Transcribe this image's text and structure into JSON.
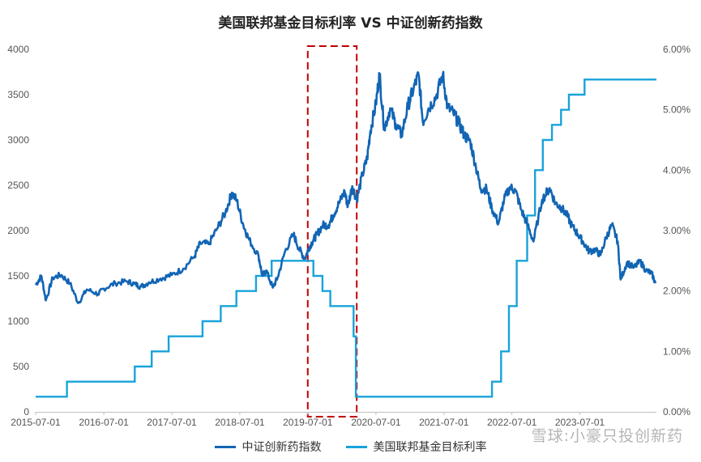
{
  "colors": {
    "index_line": "#1265b4",
    "rate_line": "#18a3d9",
    "highlight_box": "#c00000",
    "grid": "#ffffff"
  },
  "watermark": "雪球:小豪只投创新药",
  "chart_data": {
    "type": "line",
    "title": "美国联邦基金目标利率 VS 中证创新药指数",
    "x_ticks": [
      "2015-07-01",
      "2016-07-01",
      "2017-07-01",
      "2018-07-01",
      "2019-07-01",
      "2020-07-01",
      "2021-07-01",
      "2022-07-01",
      "2023-07-01"
    ],
    "x_range": [
      "2015-07-01",
      "2024-08-15"
    ],
    "y_left": {
      "range": [
        0,
        4000
      ],
      "ticks": [
        "0",
        "500",
        "1000",
        "1500",
        "2000",
        "2500",
        "3000",
        "3500",
        "4000"
      ]
    },
    "y_right": {
      "range": [
        0,
        6
      ],
      "ticks": [
        "0.00%",
        "1.00%",
        "2.00%",
        "3.00%",
        "4.00%",
        "5.00%",
        "6.00%"
      ]
    },
    "highlight": {
      "x_start": "2019-07-01",
      "x_end": "2020-03-20"
    },
    "legend": "bottom-center",
    "series": [
      {
        "name": "中证创新药指数",
        "axis": "left",
        "points": [
          [
            "2015-07-01",
            1400
          ],
          [
            "2015-08-01",
            1500
          ],
          [
            "2015-08-25",
            1230
          ],
          [
            "2015-10-01",
            1480
          ],
          [
            "2015-11-15",
            1510
          ],
          [
            "2016-01-01",
            1420
          ],
          [
            "2016-02-15",
            1200
          ],
          [
            "2016-04-01",
            1350
          ],
          [
            "2016-06-01",
            1300
          ],
          [
            "2016-07-01",
            1360
          ],
          [
            "2016-09-01",
            1420
          ],
          [
            "2016-11-01",
            1440
          ],
          [
            "2016-12-15",
            1410
          ],
          [
            "2017-01-15",
            1380
          ],
          [
            "2017-03-01",
            1430
          ],
          [
            "2017-05-01",
            1470
          ],
          [
            "2017-07-01",
            1510
          ],
          [
            "2017-09-01",
            1580
          ],
          [
            "2017-11-01",
            1720
          ],
          [
            "2017-12-01",
            1860
          ],
          [
            "2018-01-15",
            1850
          ],
          [
            "2018-03-01",
            2020
          ],
          [
            "2018-04-15",
            2200
          ],
          [
            "2018-05-20",
            2420
          ],
          [
            "2018-06-15",
            2330
          ],
          [
            "2018-07-20",
            2060
          ],
          [
            "2018-08-20",
            1900
          ],
          [
            "2018-10-10",
            1720
          ],
          [
            "2018-10-30",
            1500
          ],
          [
            "2018-11-20",
            1560
          ],
          [
            "2018-12-25",
            1370
          ],
          [
            "2019-01-20",
            1480
          ],
          [
            "2019-03-01",
            1770
          ],
          [
            "2019-04-15",
            1960
          ],
          [
            "2019-05-15",
            1800
          ],
          [
            "2019-06-15",
            1690
          ],
          [
            "2019-07-10",
            1820
          ],
          [
            "2019-08-01",
            1900
          ],
          [
            "2019-08-20",
            1960
          ],
          [
            "2019-09-20",
            2060
          ],
          [
            "2019-10-20",
            2060
          ],
          [
            "2019-11-15",
            2170
          ],
          [
            "2019-12-15",
            2300
          ],
          [
            "2020-01-15",
            2430
          ],
          [
            "2020-02-01",
            2270
          ],
          [
            "2020-02-25",
            2490
          ],
          [
            "2020-03-20",
            2340
          ],
          [
            "2020-04-20",
            2620
          ],
          [
            "2020-05-15",
            2800
          ],
          [
            "2020-06-01",
            3100
          ],
          [
            "2020-07-01",
            3400
          ],
          [
            "2020-07-20",
            3730
          ],
          [
            "2020-08-15",
            3120
          ],
          [
            "2020-09-15",
            3350
          ],
          [
            "2020-10-15",
            3180
          ],
          [
            "2020-11-15",
            3050
          ],
          [
            "2020-12-20",
            3380
          ],
          [
            "2021-01-20",
            3570
          ],
          [
            "2021-02-15",
            3720
          ],
          [
            "2021-03-10",
            3200
          ],
          [
            "2021-04-10",
            3350
          ],
          [
            "2021-05-20",
            3480
          ],
          [
            "2021-06-25",
            3720
          ],
          [
            "2021-07-20",
            3360
          ],
          [
            "2021-08-20",
            3300
          ],
          [
            "2021-09-20",
            3180
          ],
          [
            "2021-10-20",
            3050
          ],
          [
            "2021-11-20",
            2980
          ],
          [
            "2021-12-20",
            2700
          ],
          [
            "2022-01-15",
            2460
          ],
          [
            "2022-02-15",
            2460
          ],
          [
            "2022-03-15",
            2250
          ],
          [
            "2022-04-20",
            2080
          ],
          [
            "2022-05-20",
            2340
          ],
          [
            "2022-06-20",
            2480
          ],
          [
            "2022-07-20",
            2440
          ],
          [
            "2022-08-20",
            2230
          ],
          [
            "2022-09-20",
            2080
          ],
          [
            "2022-10-25",
            1880
          ],
          [
            "2022-12-10",
            2340
          ],
          [
            "2023-01-20",
            2470
          ],
          [
            "2023-02-20",
            2300
          ],
          [
            "2023-03-20",
            2260
          ],
          [
            "2023-04-20",
            2180
          ],
          [
            "2023-05-20",
            2050
          ],
          [
            "2023-06-20",
            1960
          ],
          [
            "2023-07-20",
            1870
          ],
          [
            "2023-08-20",
            1770
          ],
          [
            "2023-09-20",
            1790
          ],
          [
            "2023-10-20",
            1730
          ],
          [
            "2023-11-20",
            1930
          ],
          [
            "2023-12-20",
            2060
          ],
          [
            "2024-01-20",
            1880
          ],
          [
            "2024-02-05",
            1460
          ],
          [
            "2024-03-10",
            1650
          ],
          [
            "2024-04-15",
            1590
          ],
          [
            "2024-05-20",
            1660
          ],
          [
            "2024-06-20",
            1560
          ],
          [
            "2024-07-20",
            1530
          ],
          [
            "2024-08-10",
            1420
          ]
        ]
      },
      {
        "name": "美国联邦基金目标利率",
        "axis": "right",
        "steps": [
          [
            "2015-07-01",
            0.25
          ],
          [
            "2015-12-16",
            0.5
          ],
          [
            "2016-12-14",
            0.75
          ],
          [
            "2017-03-15",
            1.0
          ],
          [
            "2017-06-14",
            1.25
          ],
          [
            "2017-12-13",
            1.5
          ],
          [
            "2018-03-21",
            1.75
          ],
          [
            "2018-06-13",
            2.0
          ],
          [
            "2018-09-26",
            2.25
          ],
          [
            "2018-12-19",
            2.5
          ],
          [
            "2019-07-31",
            2.25
          ],
          [
            "2019-09-18",
            2.0
          ],
          [
            "2019-10-30",
            1.75
          ],
          [
            "2020-03-03",
            1.25
          ],
          [
            "2020-03-15",
            0.25
          ],
          [
            "2022-03-16",
            0.5
          ],
          [
            "2022-05-04",
            1.0
          ],
          [
            "2022-06-15",
            1.75
          ],
          [
            "2022-07-27",
            2.5
          ],
          [
            "2022-09-21",
            3.25
          ],
          [
            "2022-11-02",
            4.0
          ],
          [
            "2022-12-14",
            4.5
          ],
          [
            "2023-02-01",
            4.75
          ],
          [
            "2023-03-22",
            5.0
          ],
          [
            "2023-05-03",
            5.25
          ],
          [
            "2023-07-26",
            5.5
          ],
          [
            "2024-08-15",
            5.5
          ]
        ]
      }
    ]
  }
}
